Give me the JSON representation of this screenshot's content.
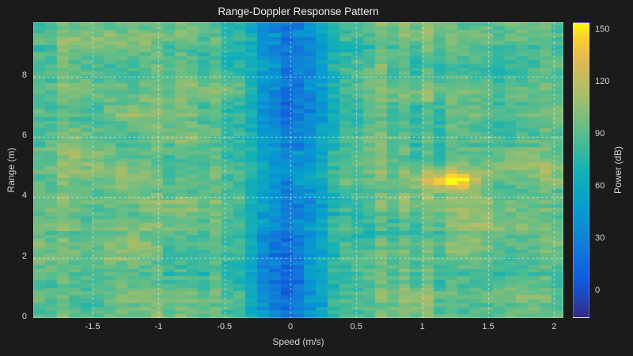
{
  "figure": {
    "background": "#1b1b1b",
    "text_color": "#dedede"
  },
  "chart_data": {
    "type": "heatmap",
    "title": "Range-Doppler Response Pattern",
    "xlabel": "Speed (m/s)",
    "ylabel": "Range (m)",
    "x_range": [
      -1.95,
      2.07
    ],
    "y_range": [
      0,
      9.8
    ],
    "x_ticks": [
      -1.5,
      -1,
      -0.5,
      0,
      0.5,
      1,
      1.5,
      2
    ],
    "y_ticks": [
      0,
      2,
      4,
      6,
      8
    ],
    "grid": {
      "show": true,
      "color": "rgba(255,255,255,0.55)",
      "dash": [
        3,
        3
      ]
    },
    "colorbar": {
      "label": "Power (dB)",
      "ticks": [
        0,
        30,
        60,
        90,
        120,
        150
      ],
      "range": [
        -15,
        155
      ]
    },
    "colormap": {
      "name": "parula",
      "stops": [
        [
          0,
          "#352a87"
        ],
        [
          0.125,
          "#0f5cdd"
        ],
        [
          0.25,
          "#127dd8"
        ],
        [
          0.375,
          "#079ccf"
        ],
        [
          0.5,
          "#15b1b4"
        ],
        [
          0.625,
          "#59bd8c"
        ],
        [
          0.75,
          "#a5be6b"
        ],
        [
          0.875,
          "#e1b952"
        ],
        [
          0.95,
          "#fcce2e"
        ],
        [
          1,
          "#f9fb14"
        ]
      ]
    },
    "heatmap_model": {
      "cols": 45,
      "rows": 78,
      "seed": 1337,
      "background_db": 95,
      "column_noise_db": 9,
      "row_noise_db": 5,
      "patch_noise_db": 12,
      "cell_noise_db": 9,
      "zero_doppler_notch": {
        "center": 0,
        "half_width": 0.6,
        "depth_db": 58
      },
      "target": {
        "speed": 1.22,
        "range": 4.55,
        "sigma_speed": 0.14,
        "sigma_range": 0.22,
        "amp_db": 58
      },
      "secondary_blobs": [
        {
          "speed": 1.95,
          "range": 4.8,
          "sigma_speed": 0.3,
          "sigma_range": 0.5,
          "amp_db": 15
        },
        {
          "speed": 1.45,
          "range": 3.55,
          "sigma_speed": 0.25,
          "sigma_range": 0.3,
          "amp_db": 12
        }
      ]
    }
  }
}
